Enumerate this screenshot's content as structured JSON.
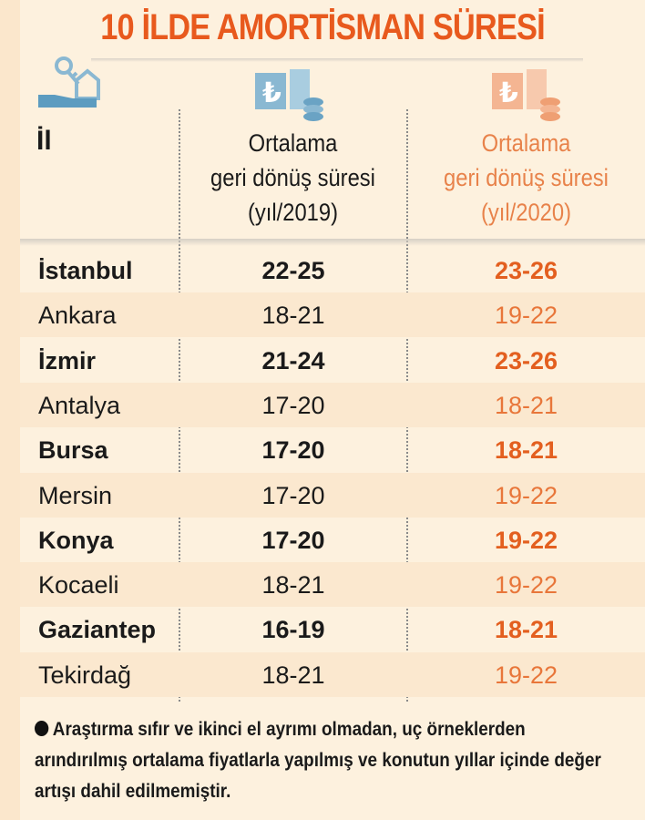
{
  "title": "10 İLDE AMORTİSMAN SÜRESİ",
  "headers": {
    "city": "İl",
    "col2019": [
      "Ortalama",
      "geri dönüş süresi",
      "(yıl/2019)"
    ],
    "col2020": [
      "Ortalama",
      "geri dönüş süresi",
      "(yıl/2020)"
    ]
  },
  "rows": [
    {
      "city": "İstanbul",
      "y2019": "22-25",
      "y2020": "23-26"
    },
    {
      "city": "Ankara",
      "y2019": "18-21",
      "y2020": "19-22"
    },
    {
      "city": "İzmir",
      "y2019": "21-24",
      "y2020": "23-26"
    },
    {
      "city": "Antalya",
      "y2019": "17-20",
      "y2020": "18-21"
    },
    {
      "city": "Bursa",
      "y2019": "17-20",
      "y2020": "18-21"
    },
    {
      "city": "Mersin",
      "y2019": "17-20",
      "y2020": "19-22"
    },
    {
      "city": "Konya",
      "y2019": "17-20",
      "y2020": "19-22"
    },
    {
      "city": "Kocaeli",
      "y2019": "18-21",
      "y2020": "19-22"
    },
    {
      "city": "Gaziantep",
      "y2019": "16-19",
      "y2020": "18-21"
    },
    {
      "city": "Tekirdağ",
      "y2019": "18-21",
      "y2020": "19-22"
    }
  ],
  "note": "Araştırma sıfır ve ikinci el ayrımı olmadan, uç örneklerden arındırılmış ortalama fiyatlarla yapılmış ve konutun yıllar içinde değer artışı dahil edilmemiştir.",
  "colors": {
    "accent": "#e8591d",
    "blue_icon": "#6aa3c4",
    "orange_icon": "#f0a47a"
  }
}
